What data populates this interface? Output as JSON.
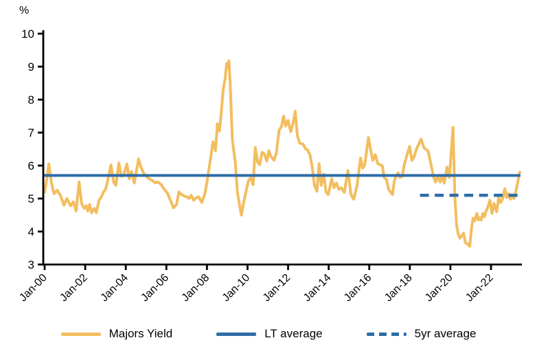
{
  "chart_data": {
    "type": "line",
    "title": "",
    "ylabel": "%",
    "ylim": [
      3,
      10
    ],
    "yticks": [
      "10",
      "9",
      "8",
      "7",
      "6",
      "5",
      "4",
      "3"
    ],
    "ytick_values": [
      10,
      9,
      8,
      7,
      6,
      5,
      4,
      3
    ],
    "xlim": [
      2000,
      2023.5
    ],
    "xtick_labels": [
      "Jan-00",
      "Jan-02",
      "Jan-04",
      "Jan-06",
      "Jan-08",
      "Jan-10",
      "Jan-12",
      "Jan-14",
      "Jan-16",
      "Jan-18",
      "Jan-20",
      "Jan-22"
    ],
    "xtick_years": [
      2000,
      2002,
      2004,
      2006,
      2008,
      2010,
      2012,
      2014,
      2016,
      2018,
      2020,
      2022
    ],
    "grid": false,
    "legend_position": "bottom",
    "colors": {
      "majors": "#F3BD5F",
      "average_blue": "#2E6DA8",
      "axis": "#000000"
    },
    "legend": [
      {
        "label": "Majors Yield",
        "color": "#F3BD5F",
        "dash": "solid"
      },
      {
        "label": "LT average",
        "color": "#2E6DA8",
        "dash": "solid"
      },
      {
        "label": "5yr average",
        "color": "#2E6DA8",
        "dash": "dashed"
      }
    ],
    "series": [
      {
        "name": "Majors Yield",
        "type": "line",
        "color": "#F3BD5F",
        "points": [
          [
            2000.0,
            5.2
          ],
          [
            2000.08,
            5.5
          ],
          [
            2000.21,
            6.05
          ],
          [
            2000.33,
            5.5
          ],
          [
            2000.46,
            5.15
          ],
          [
            2000.62,
            5.25
          ],
          [
            2000.78,
            5.1
          ],
          [
            2000.95,
            4.8
          ],
          [
            2001.1,
            5.0
          ],
          [
            2001.28,
            4.78
          ],
          [
            2001.42,
            4.9
          ],
          [
            2001.55,
            4.62
          ],
          [
            2001.7,
            5.5
          ],
          [
            2001.82,
            4.85
          ],
          [
            2001.95,
            4.7
          ],
          [
            2002.05,
            4.78
          ],
          [
            2002.13,
            4.62
          ],
          [
            2002.22,
            4.82
          ],
          [
            2002.32,
            4.57
          ],
          [
            2002.45,
            4.7
          ],
          [
            2002.55,
            4.57
          ],
          [
            2002.68,
            4.95
          ],
          [
            2002.8,
            5.05
          ],
          [
            2002.9,
            5.2
          ],
          [
            2003.0,
            5.27
          ],
          [
            2003.12,
            5.57
          ],
          [
            2003.27,
            6.02
          ],
          [
            2003.4,
            5.5
          ],
          [
            2003.51,
            5.4
          ],
          [
            2003.66,
            6.08
          ],
          [
            2003.78,
            5.67
          ],
          [
            2003.9,
            5.72
          ],
          [
            2004.05,
            6.05
          ],
          [
            2004.17,
            5.6
          ],
          [
            2004.28,
            5.82
          ],
          [
            2004.42,
            5.47
          ],
          [
            2004.55,
            5.92
          ],
          [
            2004.63,
            6.2
          ],
          [
            2004.75,
            5.95
          ],
          [
            2004.87,
            5.78
          ],
          [
            2005.0,
            5.68
          ],
          [
            2005.15,
            5.6
          ],
          [
            2005.3,
            5.55
          ],
          [
            2005.45,
            5.48
          ],
          [
            2005.6,
            5.5
          ],
          [
            2005.75,
            5.42
          ],
          [
            2005.9,
            5.27
          ],
          [
            2006.05,
            5.17
          ],
          [
            2006.2,
            4.95
          ],
          [
            2006.35,
            4.72
          ],
          [
            2006.5,
            4.82
          ],
          [
            2006.62,
            5.2
          ],
          [
            2006.75,
            5.12
          ],
          [
            2006.9,
            5.07
          ],
          [
            2007.02,
            5.05
          ],
          [
            2007.12,
            5.0
          ],
          [
            2007.22,
            5.1
          ],
          [
            2007.35,
            4.95
          ],
          [
            2007.46,
            5.02
          ],
          [
            2007.6,
            5.05
          ],
          [
            2007.75,
            4.88
          ],
          [
            2007.9,
            5.15
          ],
          [
            2008.0,
            5.5
          ],
          [
            2008.15,
            6.1
          ],
          [
            2008.3,
            6.72
          ],
          [
            2008.42,
            6.45
          ],
          [
            2008.52,
            7.27
          ],
          [
            2008.62,
            7.05
          ],
          [
            2008.72,
            7.7
          ],
          [
            2008.8,
            8.3
          ],
          [
            2008.9,
            8.65
          ],
          [
            2008.97,
            9.1
          ],
          [
            2009.02,
            8.95
          ],
          [
            2009.08,
            9.18
          ],
          [
            2009.15,
            8.45
          ],
          [
            2009.25,
            6.8
          ],
          [
            2009.33,
            6.4
          ],
          [
            2009.4,
            6.1
          ],
          [
            2009.5,
            5.2
          ],
          [
            2009.62,
            4.75
          ],
          [
            2009.7,
            4.5
          ],
          [
            2009.8,
            4.85
          ],
          [
            2009.92,
            5.2
          ],
          [
            2010.05,
            5.55
          ],
          [
            2010.15,
            5.62
          ],
          [
            2010.28,
            5.42
          ],
          [
            2010.38,
            6.55
          ],
          [
            2010.5,
            6.1
          ],
          [
            2010.6,
            6.03
          ],
          [
            2010.72,
            6.4
          ],
          [
            2010.83,
            6.35
          ],
          [
            2010.95,
            6.14
          ],
          [
            2011.05,
            6.45
          ],
          [
            2011.15,
            6.28
          ],
          [
            2011.3,
            6.16
          ],
          [
            2011.42,
            6.37
          ],
          [
            2011.55,
            7.05
          ],
          [
            2011.68,
            7.2
          ],
          [
            2011.78,
            7.5
          ],
          [
            2011.88,
            7.2
          ],
          [
            2012.0,
            7.37
          ],
          [
            2012.13,
            7.03
          ],
          [
            2012.25,
            7.3
          ],
          [
            2012.35,
            7.65
          ],
          [
            2012.46,
            6.9
          ],
          [
            2012.57,
            6.68
          ],
          [
            2012.74,
            6.65
          ],
          [
            2012.85,
            6.51
          ],
          [
            2012.96,
            6.47
          ],
          [
            2013.08,
            6.33
          ],
          [
            2013.19,
            5.95
          ],
          [
            2013.3,
            5.4
          ],
          [
            2013.42,
            5.22
          ],
          [
            2013.53,
            6.06
          ],
          [
            2013.63,
            5.4
          ],
          [
            2013.76,
            5.74
          ],
          [
            2013.87,
            5.19
          ],
          [
            2013.98,
            5.12
          ],
          [
            2014.15,
            5.6
          ],
          [
            2014.26,
            5.33
          ],
          [
            2014.38,
            5.47
          ],
          [
            2014.5,
            5.28
          ],
          [
            2014.62,
            5.33
          ],
          [
            2014.77,
            5.19
          ],
          [
            2014.95,
            5.85
          ],
          [
            2015.1,
            5.12
          ],
          [
            2015.23,
            4.98
          ],
          [
            2015.4,
            5.4
          ],
          [
            2015.57,
            6.23
          ],
          [
            2015.68,
            5.92
          ],
          [
            2015.78,
            6.02
          ],
          [
            2015.96,
            6.85
          ],
          [
            2016.1,
            6.37
          ],
          [
            2016.18,
            6.16
          ],
          [
            2016.3,
            6.33
          ],
          [
            2016.42,
            6.06
          ],
          [
            2016.55,
            6.02
          ],
          [
            2016.65,
            5.99
          ],
          [
            2016.73,
            5.64
          ],
          [
            2016.85,
            5.57
          ],
          [
            2016.95,
            5.29
          ],
          [
            2017.06,
            5.19
          ],
          [
            2017.15,
            5.12
          ],
          [
            2017.23,
            5.53
          ],
          [
            2017.34,
            5.71
          ],
          [
            2017.42,
            5.78
          ],
          [
            2017.51,
            5.64
          ],
          [
            2017.62,
            5.67
          ],
          [
            2017.74,
            6.06
          ],
          [
            2017.85,
            6.3
          ],
          [
            2017.99,
            6.58
          ],
          [
            2018.1,
            6.16
          ],
          [
            2018.2,
            6.25
          ],
          [
            2018.33,
            6.51
          ],
          [
            2018.44,
            6.65
          ],
          [
            2018.55,
            6.8
          ],
          [
            2018.7,
            6.54
          ],
          [
            2018.9,
            6.44
          ],
          [
            2019.05,
            6.02
          ],
          [
            2019.16,
            5.67
          ],
          [
            2019.27,
            5.5
          ],
          [
            2019.38,
            5.67
          ],
          [
            2019.5,
            5.5
          ],
          [
            2019.6,
            5.71
          ],
          [
            2019.7,
            5.47
          ],
          [
            2019.83,
            5.95
          ],
          [
            2019.95,
            5.64
          ],
          [
            2020.13,
            7.16
          ],
          [
            2020.22,
            5.05
          ],
          [
            2020.3,
            4.21
          ],
          [
            2020.38,
            3.94
          ],
          [
            2020.47,
            3.8
          ],
          [
            2020.56,
            3.87
          ],
          [
            2020.65,
            3.95
          ],
          [
            2020.74,
            3.66
          ],
          [
            2020.85,
            3.62
          ],
          [
            2020.95,
            3.55
          ],
          [
            2021.05,
            4.15
          ],
          [
            2021.12,
            4.4
          ],
          [
            2021.2,
            4.32
          ],
          [
            2021.3,
            4.55
          ],
          [
            2021.38,
            4.35
          ],
          [
            2021.45,
            4.42
          ],
          [
            2021.52,
            4.35
          ],
          [
            2021.6,
            4.55
          ],
          [
            2021.68,
            4.45
          ],
          [
            2021.75,
            4.6
          ],
          [
            2021.85,
            4.75
          ],
          [
            2021.95,
            4.95
          ],
          [
            2022.05,
            4.55
          ],
          [
            2022.15,
            4.85
          ],
          [
            2022.28,
            4.6
          ],
          [
            2022.38,
            5.05
          ],
          [
            2022.47,
            4.88
          ],
          [
            2022.57,
            4.98
          ],
          [
            2022.68,
            5.3
          ],
          [
            2022.77,
            5.03
          ],
          [
            2022.86,
            5.15
          ],
          [
            2022.95,
            4.98
          ],
          [
            2023.05,
            5.08
          ],
          [
            2023.13,
            5.0
          ],
          [
            2023.22,
            5.2
          ],
          [
            2023.32,
            5.5
          ],
          [
            2023.42,
            5.8
          ]
        ]
      },
      {
        "name": "LT average",
        "type": "hline",
        "color": "#2E6DA8",
        "value": 5.7,
        "x_range": [
          2000,
          2023.45
        ],
        "dash": "solid"
      },
      {
        "name": "5yr average",
        "type": "hline",
        "color": "#2E6DA8",
        "value": 5.1,
        "x_range": [
          2018.5,
          2023.45
        ],
        "dash": "dashed"
      }
    ]
  }
}
